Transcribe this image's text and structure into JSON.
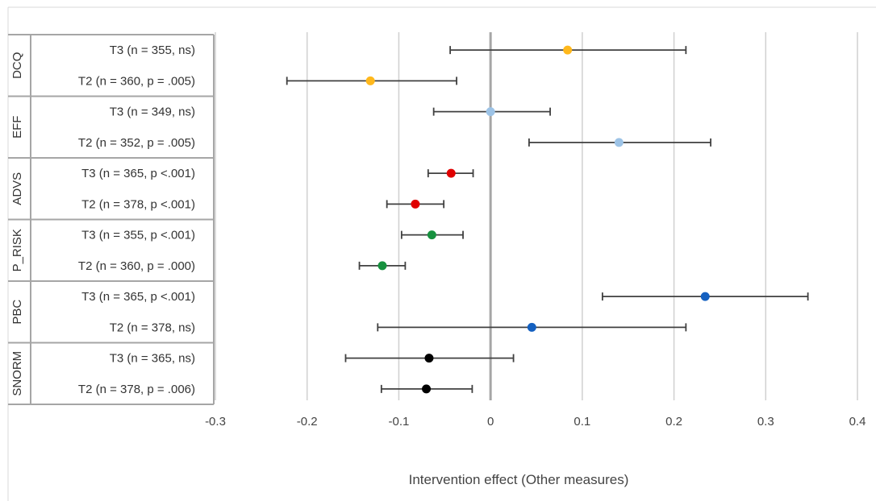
{
  "chart_data": {
    "type": "forest",
    "xlabel": "Intervention effect (Other measures)",
    "xlim": [
      -0.3,
      0.4
    ],
    "xticks": [
      "-0.3",
      "-0.2",
      "-0.1",
      "0",
      "0.1",
      "0.2",
      "0.3",
      "0.4"
    ],
    "xtick_values": [
      -0.3,
      -0.2,
      -0.1,
      0,
      0.1,
      0.2,
      0.3,
      0.4
    ],
    "grid": true,
    "groups": [
      {
        "name": "DCQ",
        "color": "#FFB81C",
        "rows": [
          {
            "label": "T3 (n = 355, ns)",
            "estimate": 0.084,
            "lower": -0.044,
            "upper": 0.213
          },
          {
            "label": "T2 (n = 360, p = .005)",
            "estimate": -0.131,
            "lower": -0.222,
            "upper": -0.037
          }
        ]
      },
      {
        "name": "EFF",
        "color": "#9DC3E6",
        "rows": [
          {
            "label": "T3 (n = 349, ns)",
            "estimate": 0.0,
            "lower": -0.062,
            "upper": 0.065
          },
          {
            "label": "T2 (n = 352, p = .005)",
            "estimate": 0.14,
            "lower": 0.042,
            "upper": 0.24
          }
        ]
      },
      {
        "name": "ADVS",
        "color": "#E00000",
        "rows": [
          {
            "label": "T3 (n = 365, p <.001)",
            "estimate": -0.043,
            "lower": -0.068,
            "upper": -0.019
          },
          {
            "label": "T2 (n = 378, p <.001)",
            "estimate": -0.082,
            "lower": -0.113,
            "upper": -0.051
          }
        ]
      },
      {
        "name": "P_RISK",
        "color": "#17913F",
        "rows": [
          {
            "label": "T3 (n = 355, p <.001)",
            "estimate": -0.064,
            "lower": -0.097,
            "upper": -0.03
          },
          {
            "label": "T2 (n = 360, p = .000)",
            "estimate": -0.118,
            "lower": -0.143,
            "upper": -0.093
          }
        ]
      },
      {
        "name": "PBC",
        "color": "#1460C0",
        "rows": [
          {
            "label": "T3 (n = 365, p <.001)",
            "estimate": 0.234,
            "lower": 0.122,
            "upper": 0.346
          },
          {
            "label": "T2 (n = 378, ns)",
            "estimate": 0.045,
            "lower": -0.123,
            "upper": 0.213
          }
        ]
      },
      {
        "name": "SNORM",
        "color": "#000000",
        "rows": [
          {
            "label": "T3 (n = 365, ns)",
            "estimate": -0.067,
            "lower": -0.158,
            "upper": 0.025
          },
          {
            "label": "T2 (n = 378, p = .006)",
            "estimate": -0.07,
            "lower": -0.119,
            "upper": -0.02
          }
        ]
      }
    ]
  }
}
